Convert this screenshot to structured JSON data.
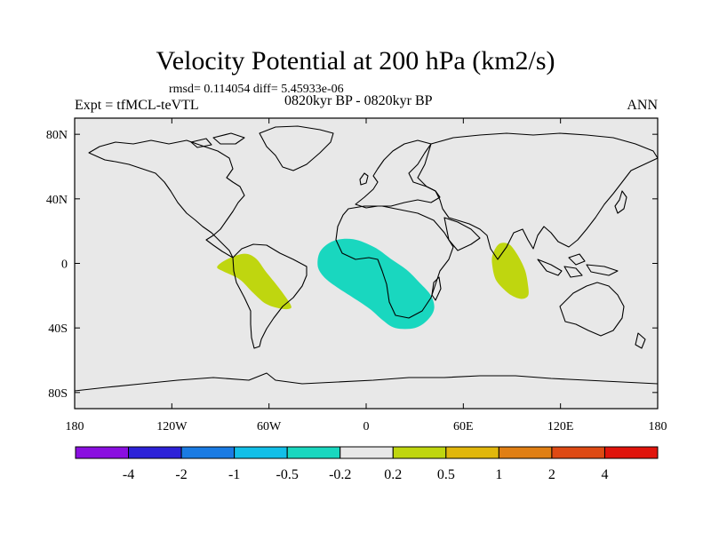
{
  "title": "Velocity Potential at 200 hPa (km2/s)",
  "stats": "rmsd= 0.114054 diff= 5.45933e-06",
  "period": "0820kyr BP - 0820kyr BP",
  "experiment": "Expt = tfMCL-teVTL",
  "season": "ANN",
  "map": {
    "lon_range": [
      -180,
      180
    ],
    "lat_range": [
      -90,
      90
    ],
    "x_ticks": [
      {
        "lon": -180,
        "label": "180"
      },
      {
        "lon": -120,
        "label": "120W"
      },
      {
        "lon": -60,
        "label": "60W"
      },
      {
        "lon": 0,
        "label": "0"
      },
      {
        "lon": 60,
        "label": "60E"
      },
      {
        "lon": 120,
        "label": "120E"
      },
      {
        "lon": 180,
        "label": "180"
      }
    ],
    "y_ticks": [
      {
        "lat": 80,
        "label": "80N"
      },
      {
        "lat": 40,
        "label": "40N"
      },
      {
        "lat": 0,
        "label": "0"
      },
      {
        "lat": -40,
        "label": "40S"
      },
      {
        "lat": -80,
        "label": "80S"
      }
    ],
    "background_color": "#e8e8e8",
    "anomaly_regions": [
      {
        "name": "south-america-positive",
        "class": "0.2 to 0.5",
        "color": "#bfd60f",
        "outline": [
          [
            -92,
            -2
          ],
          [
            -85,
            3
          ],
          [
            -75,
            6
          ],
          [
            -68,
            3
          ],
          [
            -62,
            -5
          ],
          [
            -54,
            -15
          ],
          [
            -47,
            -25
          ],
          [
            -47,
            -28
          ],
          [
            -53,
            -28
          ],
          [
            -62,
            -25
          ],
          [
            -70,
            -18
          ],
          [
            -78,
            -10
          ],
          [
            -88,
            -5
          ]
        ]
      },
      {
        "name": "africa-atlantic-negative",
        "class": "-0.5 to -0.2",
        "color": "#19d7bf",
        "outline": [
          [
            -30,
            0
          ],
          [
            -28,
            8
          ],
          [
            -20,
            14
          ],
          [
            -8,
            15
          ],
          [
            5,
            10
          ],
          [
            15,
            3
          ],
          [
            25,
            -4
          ],
          [
            33,
            -12
          ],
          [
            40,
            -20
          ],
          [
            42,
            -28
          ],
          [
            38,
            -35
          ],
          [
            30,
            -40
          ],
          [
            18,
            -40
          ],
          [
            10,
            -35
          ],
          [
            2,
            -28
          ],
          [
            -10,
            -20
          ],
          [
            -22,
            -12
          ],
          [
            -28,
            -6
          ]
        ]
      },
      {
        "name": "indian-ocean-positive",
        "class": "0.2 to 0.5",
        "color": "#bfd60f",
        "outline": [
          [
            78,
            5
          ],
          [
            82,
            12
          ],
          [
            88,
            12
          ],
          [
            93,
            6
          ],
          [
            98,
            -4
          ],
          [
            100,
            -14
          ],
          [
            100,
            -20
          ],
          [
            96,
            -22
          ],
          [
            90,
            -20
          ],
          [
            85,
            -16
          ],
          [
            80,
            -10
          ],
          [
            78,
            -2
          ]
        ]
      }
    ]
  },
  "colorbar": {
    "colors": [
      "#8a0fe0",
      "#2d22d8",
      "#1a7be3",
      "#12bfe8",
      "#19d7bf",
      "#e8e8e8",
      "#bfd60f",
      "#e1b70c",
      "#e07f14",
      "#de4a14",
      "#e0140c"
    ],
    "labels": [
      "-4",
      "-2",
      "-1",
      "-0.5",
      "-0.2",
      "0.2",
      "0.5",
      "1",
      "2",
      "4"
    ]
  }
}
